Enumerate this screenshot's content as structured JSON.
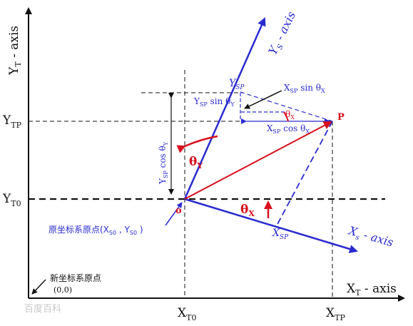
{
  "colors": {
    "axis": "#111111",
    "blue": "#2b2bd0",
    "red": "#d8101e"
  },
  "labels": {
    "yt_axis": [
      "Y",
      "T",
      " - axis"
    ],
    "xt_axis": [
      "X",
      "T",
      " - axis"
    ],
    "ys_axis": [
      "Y",
      "S",
      " - axis"
    ],
    "xs_axis": [
      "X",
      "s",
      " - axis"
    ],
    "ytp": [
      "Y",
      "TP"
    ],
    "yt0": [
      "Y",
      "T0"
    ],
    "xt0": [
      "X",
      "T0"
    ],
    "xtp": [
      "X",
      "TP"
    ],
    "ysp_top": [
      "Y",
      "SP"
    ],
    "xsp_bottom": [
      "X",
      "SP"
    ],
    "point_p": "P",
    "origin_o": "o",
    "theta_y": [
      "θ",
      "Y"
    ],
    "theta_x": [
      "θ",
      "X"
    ],
    "theta_x_small": [
      "θ",
      "X"
    ],
    "xsp_sin": [
      "X",
      "SP",
      " sin θ",
      "X"
    ],
    "ysp_sin": [
      "Y",
      "SP",
      " sin  θ",
      "Y"
    ],
    "xsp_cos": [
      "X",
      "SP",
      " cos θ",
      "X"
    ],
    "ysp_cos": [
      "Y",
      "SP",
      " cos θ",
      "Y"
    ],
    "old_origin": [
      "原坐标系原点(X",
      "S0",
      " , Y",
      "S0",
      " )"
    ],
    "new_origin": "新坐标系原点",
    "new_origin_coords": "(0,0)",
    "watermark": "百度百科"
  }
}
